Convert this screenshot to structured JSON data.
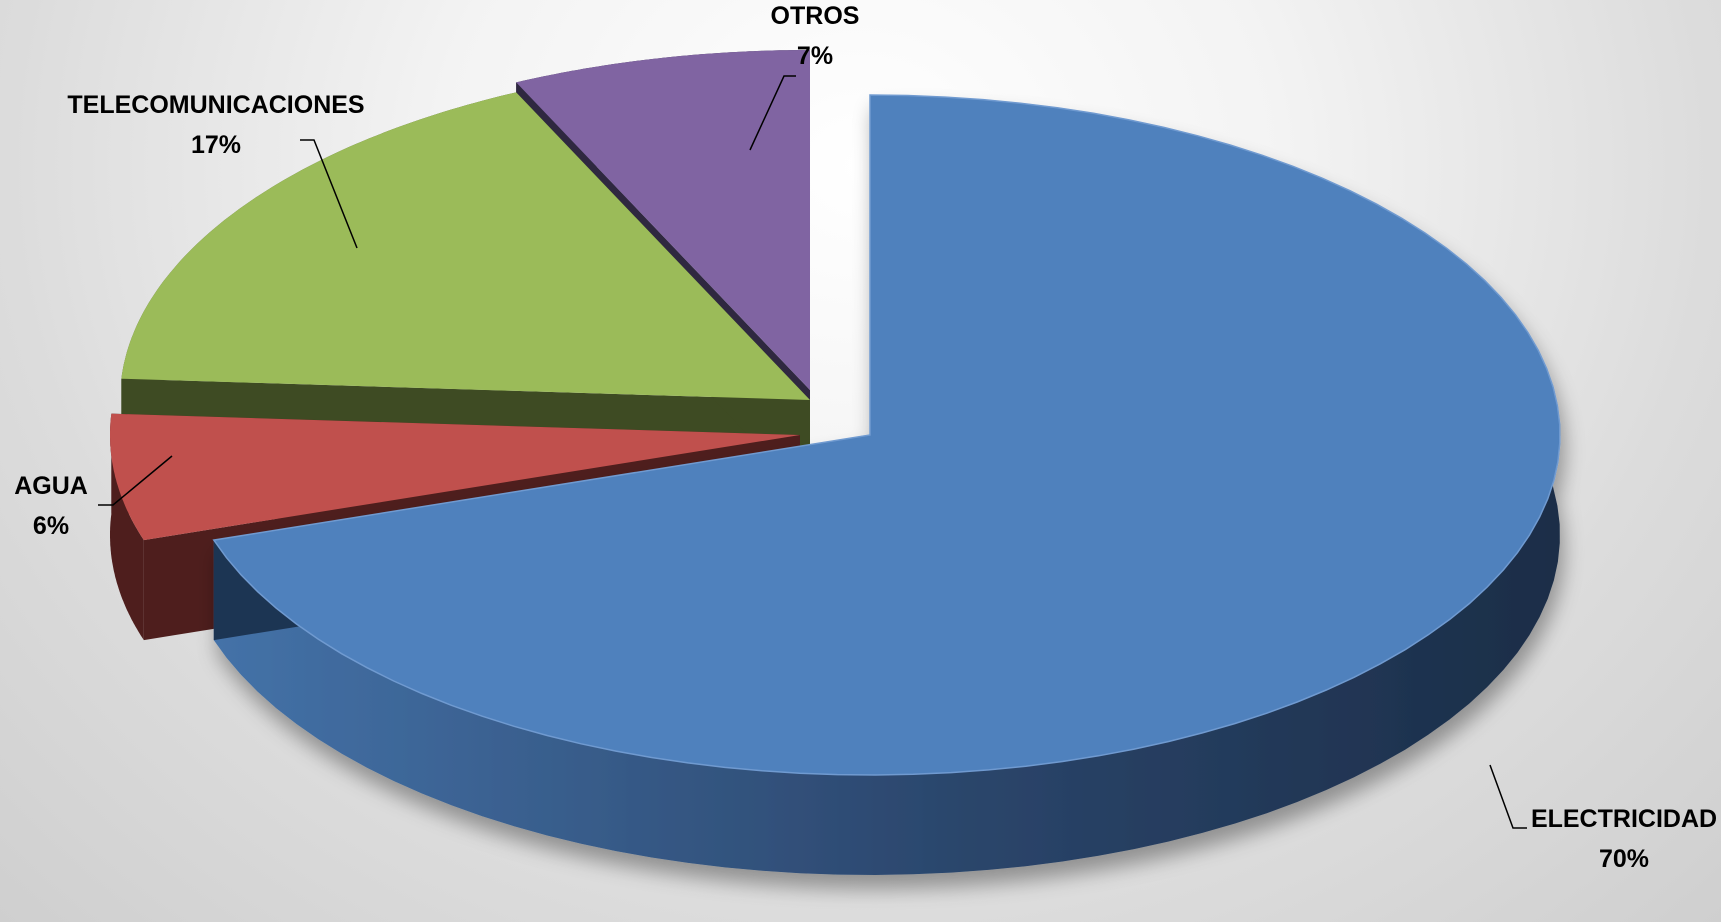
{
  "chart_data": {
    "type": "pie",
    "style": "3d-exploded",
    "categories": [
      "ELECTRICIDAD",
      "AGUA",
      "TELECOMUNICACIONES",
      "OTROS"
    ],
    "values": [
      70,
      6,
      17,
      7
    ],
    "value_labels": [
      "70%",
      "6%",
      "17%",
      "7%"
    ],
    "colors": [
      "#4F81BD",
      "#C0504D",
      "#9BBB59",
      "#8064A2"
    ],
    "side_colors": [
      "#1F3552",
      "#4E1E1D",
      "#3E4B23",
      "#2F2840"
    ],
    "legend": "none",
    "data_labels": "outside-with-leader-lines"
  }
}
